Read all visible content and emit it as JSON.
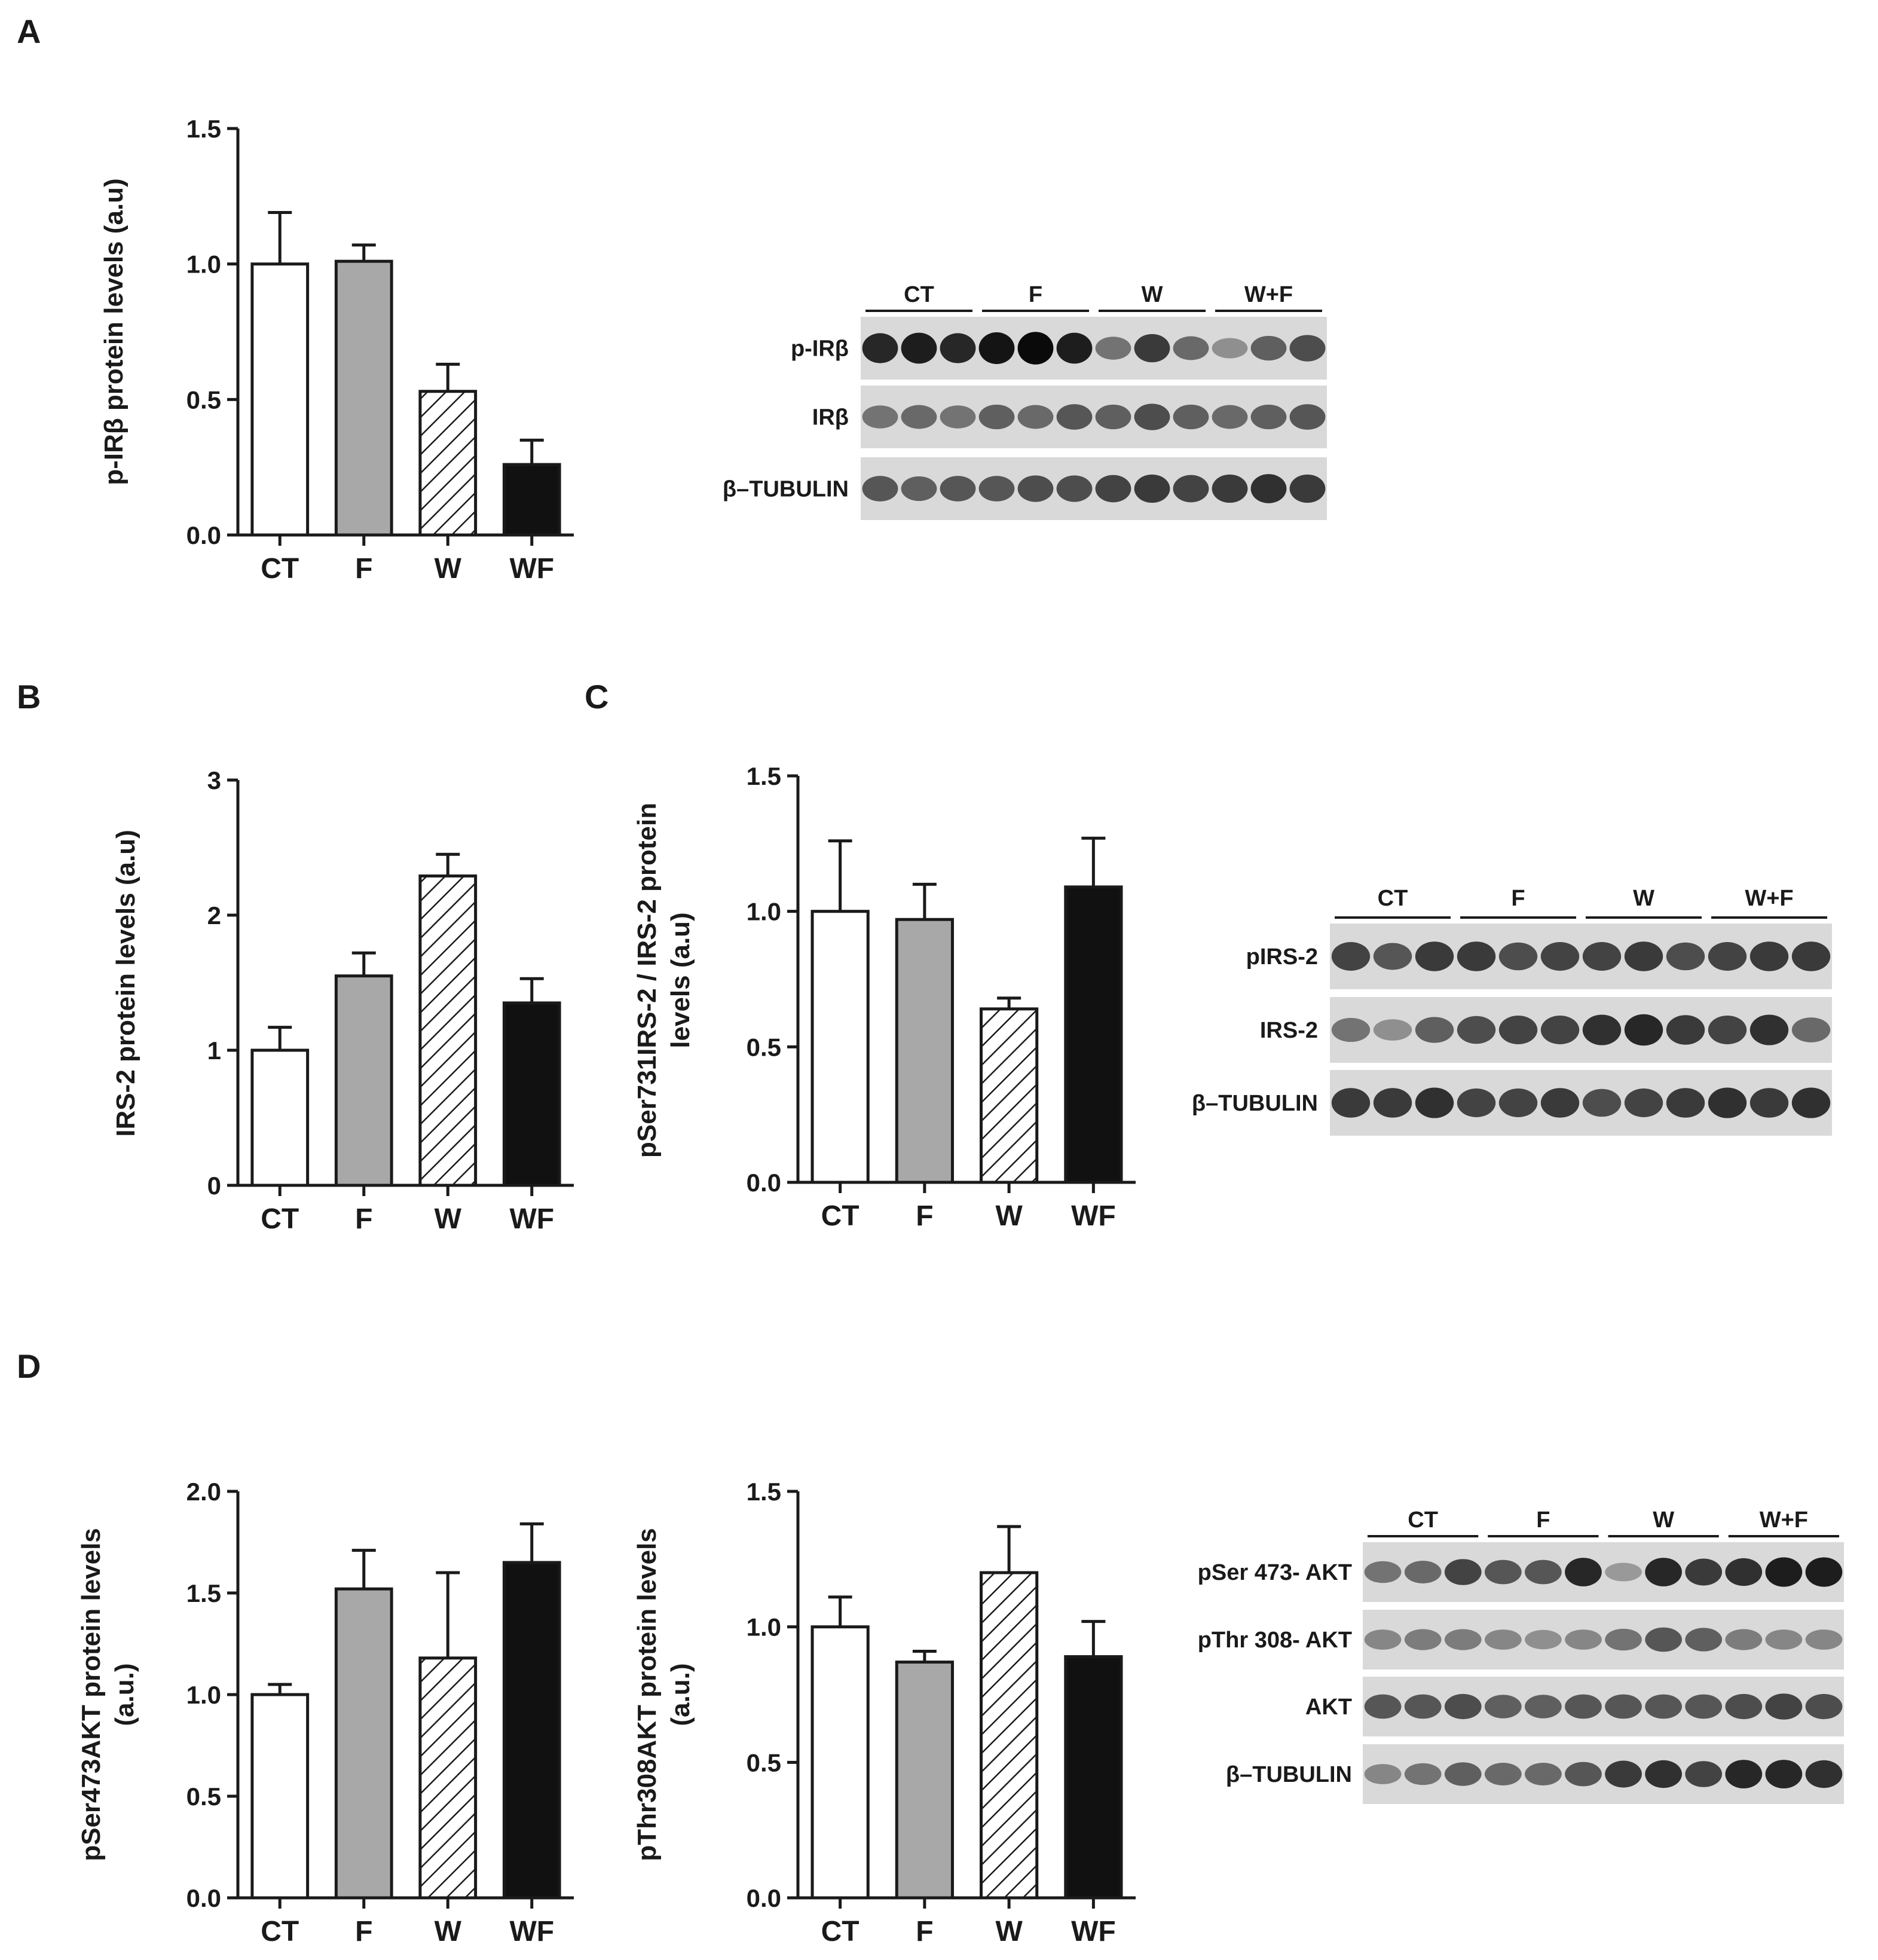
{
  "panels": {
    "A": "A",
    "B": "B",
    "C": "C",
    "D": "D"
  },
  "colors": {
    "ct": "#ffffff",
    "f": "#a8a8a8",
    "w": "hatched",
    "wf": "#111111"
  },
  "chart_data": [
    {
      "id": "A",
      "type": "bar",
      "categories": [
        "CT",
        "F",
        "W",
        "WF"
      ],
      "values": [
        1.0,
        1.01,
        0.53,
        0.26
      ],
      "errors": [
        0.19,
        0.06,
        0.1,
        0.09
      ],
      "yticks": [
        "0.0",
        "0.5",
        "1.0",
        "1.5"
      ],
      "ylim": [
        0,
        1.5
      ],
      "ylabel": [
        "p-IRβ protein levels (a.u)"
      ]
    },
    {
      "id": "B",
      "type": "bar",
      "categories": [
        "CT",
        "F",
        "W",
        "WF"
      ],
      "values": [
        1.0,
        1.55,
        2.29,
        1.35
      ],
      "errors": [
        0.17,
        0.17,
        0.16,
        0.18
      ],
      "yticks": [
        "0",
        "1",
        "2",
        "3"
      ],
      "ylim": [
        0,
        3
      ],
      "ylabel": [
        "IRS-2 protein levels (a.u)"
      ]
    },
    {
      "id": "C",
      "type": "bar",
      "categories": [
        "CT",
        "F",
        "W",
        "WF"
      ],
      "values": [
        1.0,
        0.97,
        0.64,
        1.09
      ],
      "errors": [
        0.26,
        0.13,
        0.04,
        0.18
      ],
      "yticks": [
        "0.0",
        "0.5",
        "1.0",
        "1.5"
      ],
      "ylim": [
        0,
        1.5
      ],
      "ylabel": [
        "pSer731IRS-2 / IRS-2 protein",
        "levels (a.u)"
      ]
    },
    {
      "id": "D1",
      "type": "bar",
      "categories": [
        "CT",
        "F",
        "W",
        "WF"
      ],
      "values": [
        1.0,
        1.52,
        1.18,
        1.65
      ],
      "errors": [
        0.05,
        0.19,
        0.42,
        0.19
      ],
      "yticks": [
        "0.0",
        "0.5",
        "1.0",
        "1.5",
        "2.0"
      ],
      "ylim": [
        0,
        2.0
      ],
      "ylabel": [
        "pSer473AKT protein levels",
        "(a.u.)"
      ]
    },
    {
      "id": "D2",
      "type": "bar",
      "categories": [
        "CT",
        "F",
        "W",
        "WF"
      ],
      "values": [
        1.0,
        0.87,
        1.2,
        0.89
      ],
      "errors": [
        0.11,
        0.04,
        0.17,
        0.13
      ],
      "yticks": [
        "0.0",
        "0.5",
        "1.0",
        "1.5"
      ],
      "ylim": [
        0,
        1.5
      ],
      "ylabel": [
        "pThr308AKT protein levels",
        "(a.u.)"
      ]
    }
  ],
  "blots": [
    {
      "id": "blot-A",
      "groups": [
        "CT",
        "F",
        "W",
        "W+F"
      ],
      "rows": [
        "p-IRβ",
        "IRβ",
        "β–TUBULIN"
      ],
      "intensity": [
        [
          0.85,
          0.9,
          0.85,
          0.95,
          1.0,
          0.9,
          0.45,
          0.75,
          0.5,
          0.3,
          0.55,
          0.65
        ],
        [
          0.45,
          0.5,
          0.45,
          0.55,
          0.5,
          0.6,
          0.55,
          0.65,
          0.55,
          0.5,
          0.55,
          0.6
        ],
        [
          0.6,
          0.55,
          0.6,
          0.6,
          0.65,
          0.65,
          0.7,
          0.75,
          0.7,
          0.75,
          0.8,
          0.75
        ]
      ]
    },
    {
      "id": "blot-C",
      "groups": [
        "CT",
        "F",
        "W",
        "W+F"
      ],
      "rows": [
        "pIRS-2",
        "IRS-2",
        "β–TUBULIN"
      ],
      "intensity": [
        [
          0.7,
          0.6,
          0.75,
          0.75,
          0.65,
          0.7,
          0.7,
          0.75,
          0.65,
          0.7,
          0.75,
          0.75
        ],
        [
          0.45,
          0.3,
          0.55,
          0.65,
          0.7,
          0.7,
          0.8,
          0.85,
          0.75,
          0.7,
          0.8,
          0.5
        ],
        [
          0.75,
          0.75,
          0.8,
          0.7,
          0.7,
          0.75,
          0.65,
          0.7,
          0.75,
          0.8,
          0.75,
          0.8
        ]
      ]
    },
    {
      "id": "blot-D",
      "groups": [
        "CT",
        "F",
        "W",
        "W+F"
      ],
      "rows": [
        "pSer 473- AKT",
        "pThr 308- AKT",
        "AKT",
        "β–TUBULIN"
      ],
      "intensity": [
        [
          0.45,
          0.5,
          0.7,
          0.6,
          0.6,
          0.85,
          0.25,
          0.85,
          0.75,
          0.8,
          0.9,
          0.9
        ],
        [
          0.35,
          0.4,
          0.4,
          0.35,
          0.3,
          0.35,
          0.45,
          0.6,
          0.55,
          0.4,
          0.35,
          0.35
        ],
        [
          0.6,
          0.6,
          0.65,
          0.55,
          0.55,
          0.6,
          0.6,
          0.6,
          0.6,
          0.65,
          0.7,
          0.65
        ],
        [
          0.35,
          0.45,
          0.55,
          0.5,
          0.5,
          0.6,
          0.75,
          0.8,
          0.7,
          0.85,
          0.85,
          0.8
        ]
      ]
    }
  ]
}
